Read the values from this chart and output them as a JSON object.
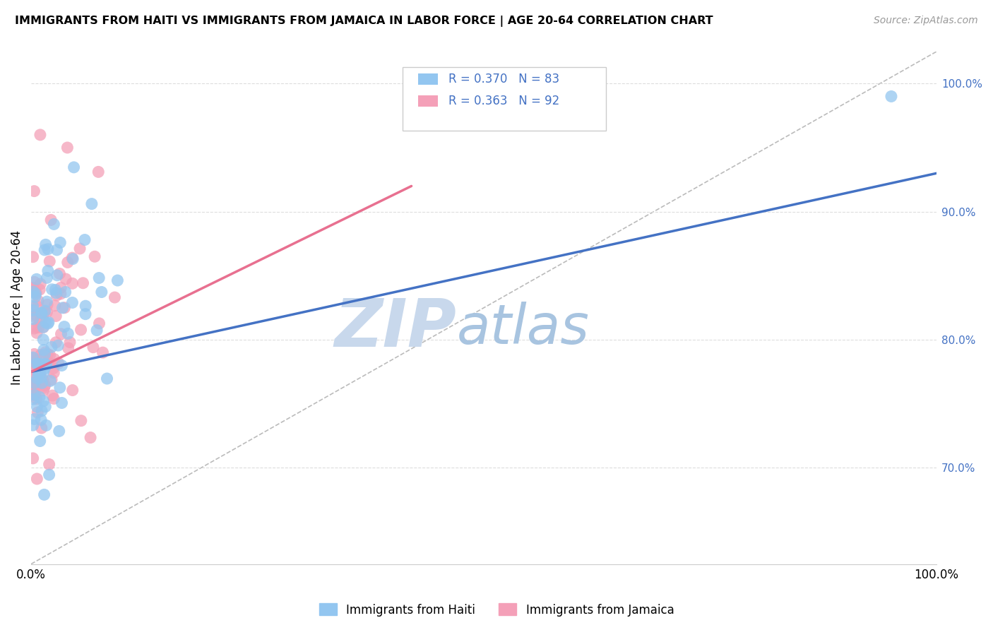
{
  "title": "IMMIGRANTS FROM HAITI VS IMMIGRANTS FROM JAMAICA IN LABOR FORCE | AGE 20-64 CORRELATION CHART",
  "source": "Source: ZipAtlas.com",
  "ylabel": "In Labor Force | Age 20-64",
  "legend_haiti": "Immigrants from Haiti",
  "legend_jamaica": "Immigrants from Jamaica",
  "R_haiti": 0.37,
  "N_haiti": 83,
  "R_jamaica": 0.363,
  "N_jamaica": 92,
  "haiti_color": "#93C6F0",
  "jamaica_color": "#F4A0B8",
  "haiti_line_color": "#4472C4",
  "jamaica_line_color": "#E87090",
  "right_label_color": "#4472C4",
  "watermark_zip": "ZIP",
  "watermark_atlas": "atlas",
  "watermark_color_zip": "#C8D8EC",
  "watermark_color_atlas": "#A8C4E0",
  "xlim": [
    0.0,
    1.0
  ],
  "ylim": [
    0.625,
    1.025
  ],
  "y_ticks": [
    0.7,
    0.8,
    0.9,
    1.0
  ],
  "y_tick_labels": [
    "70.0%",
    "80.0%",
    "90.0%",
    "100.0%"
  ],
  "haiti_line_x0": 0.0,
  "haiti_line_y0": 0.775,
  "haiti_line_x1": 1.0,
  "haiti_line_y1": 0.93,
  "jamaica_line_x0": 0.0,
  "jamaica_line_y0": 0.775,
  "jamaica_line_x1": 0.42,
  "jamaica_line_y1": 0.92,
  "ref_line_x0": 0.0,
  "ref_line_y0": 0.625,
  "ref_line_x1": 1.0,
  "ref_line_y1": 1.025
}
